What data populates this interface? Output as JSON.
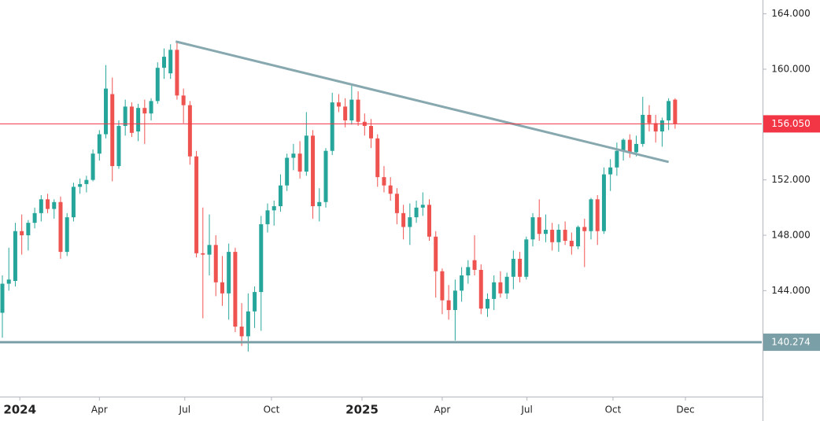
{
  "chart_data": {
    "type": "candlestick",
    "open": [
      142.4,
      144.5,
      144.7,
      148.3,
      148.0,
      148.9,
      149.6,
      150.6,
      149.9,
      150.4,
      146.8,
      149.3,
      151.5,
      151.7,
      152.0,
      153.9,
      155.3,
      158.2,
      153.0,
      155.9,
      157.3,
      155.5,
      157.2,
      156.8,
      157.7,
      160.1,
      159.7,
      161.4,
      158.1,
      157.4,
      153.7,
      146.7,
      146.6,
      147.3,
      144.6,
      143.8,
      146.8,
      141.4,
      140.7,
      142.5,
      143.9,
      148.8,
      149.8,
      150.1,
      151.6,
      153.6,
      153.9,
      152.6,
      155.2,
      150.1,
      150.4,
      154.1,
      157.6,
      157.3,
      156.3,
      157.8,
      156.2,
      155.9,
      155.0,
      152.2,
      151.6,
      151.0,
      149.6,
      148.6,
      149.3,
      150.0,
      150.2,
      147.9,
      145.4,
      143.3,
      142.6,
      144.0,
      145.1,
      146.2,
      145.5,
      142.7,
      143.4,
      144.6,
      143.8,
      145.0,
      146.3,
      145.0,
      147.7,
      149.3,
      148.1,
      148.4,
      147.5,
      148.4,
      147.6,
      147.2,
      148.6,
      148.3,
      150.6,
      148.3,
      152.4,
      152.9,
      154.1,
      154.9,
      154.0,
      154.6,
      156.7,
      156.1,
      155.5,
      156.3,
      157.8
    ],
    "high": [
      145.1,
      147.1,
      148.9,
      149.5,
      149.1,
      150.0,
      150.9,
      151.0,
      150.6,
      150.8,
      149.6,
      151.8,
      152.1,
      152.3,
      154.2,
      155.6,
      160.3,
      159.4,
      156.3,
      157.8,
      157.6,
      157.5,
      157.8,
      157.9,
      160.5,
      161.5,
      161.8,
      161.9,
      158.6,
      157.7,
      154.1,
      150.0,
      149.5,
      148.0,
      146.5,
      147.4,
      147.1,
      143.1,
      143.8,
      144.3,
      149.4,
      150.3,
      150.5,
      152.4,
      153.9,
      154.6,
      154.8,
      156.9,
      155.6,
      151.4,
      154.3,
      158.3,
      158.2,
      157.9,
      158.8,
      158.4,
      156.8,
      156.4,
      155.3,
      153.0,
      152.2,
      151.4,
      150.2,
      150.3,
      150.5,
      151.1,
      150.6,
      148.3,
      145.6,
      144.4,
      144.8,
      145.7,
      146.2,
      148.0,
      145.9,
      143.8,
      145.1,
      145.4,
      145.3,
      146.9,
      146.8,
      147.9,
      149.6,
      150.6,
      149.5,
      148.9,
      148.8,
      149.0,
      148.2,
      148.7,
      149.2,
      150.7,
      150.9,
      152.9,
      153.5,
      154.7,
      155.0,
      155.3,
      155.2,
      158.0,
      157.4,
      156.7,
      156.5,
      157.9,
      157.9
    ],
    "low": [
      140.6,
      144.0,
      144.3,
      146.6,
      146.9,
      148.5,
      149.0,
      149.6,
      149.2,
      146.3,
      146.5,
      149.0,
      151.0,
      151.1,
      151.9,
      153.4,
      155.0,
      151.9,
      152.8,
      155.2,
      155.1,
      154.8,
      154.6,
      156.3,
      157.5,
      159.3,
      159.3,
      157.8,
      156.1,
      153.1,
      146.4,
      142.0,
      145.1,
      143.6,
      142.9,
      141.9,
      141.0,
      140.0,
      139.6,
      141.3,
      141.1,
      148.2,
      148.7,
      149.7,
      151.2,
      152.7,
      152.1,
      152.3,
      149.2,
      149.0,
      150.0,
      153.8,
      156.9,
      155.8,
      156.0,
      155.9,
      155.2,
      154.3,
      151.5,
      151.1,
      150.5,
      148.8,
      147.7,
      147.3,
      148.9,
      149.4,
      147.6,
      143.5,
      142.3,
      141.9,
      140.4,
      143.2,
      144.5,
      145.1,
      142.3,
      142.1,
      142.6,
      143.5,
      143.4,
      144.1,
      144.6,
      144.8,
      147.2,
      147.6,
      147.5,
      146.9,
      146.8,
      147.3,
      146.6,
      147.0,
      145.7,
      147.7,
      147.3,
      148.1,
      151.2,
      152.3,
      153.4,
      153.6,
      153.7,
      154.4,
      155.5,
      154.7,
      154.4,
      155.6,
      155.7
    ],
    "close": [
      144.5,
      144.8,
      148.3,
      148.0,
      148.9,
      149.6,
      150.6,
      149.9,
      150.4,
      146.8,
      149.3,
      151.5,
      151.7,
      152.0,
      153.9,
      155.3,
      158.6,
      153.0,
      155.9,
      157.3,
      155.4,
      157.2,
      156.8,
      157.7,
      160.1,
      160.9,
      161.4,
      158.1,
      157.4,
      153.7,
      146.7,
      146.6,
      147.3,
      144.6,
      143.8,
      146.8,
      141.4,
      140.7,
      142.5,
      143.9,
      148.8,
      149.8,
      150.1,
      151.6,
      153.6,
      153.9,
      152.6,
      155.2,
      150.1,
      150.4,
      154.1,
      157.6,
      157.3,
      156.3,
      157.8,
      156.2,
      155.9,
      155.0,
      152.2,
      151.6,
      151.0,
      149.6,
      148.6,
      149.3,
      150.0,
      150.2,
      147.9,
      145.4,
      143.3,
      142.6,
      144.0,
      145.1,
      145.7,
      145.5,
      142.7,
      143.4,
      144.6,
      143.8,
      145.0,
      146.3,
      145.0,
      147.7,
      149.3,
      148.1,
      148.4,
      147.5,
      148.4,
      147.6,
      147.2,
      148.6,
      148.3,
      150.6,
      148.3,
      152.4,
      152.9,
      154.1,
      154.9,
      154.0,
      154.6,
      156.7,
      156.1,
      155.5,
      156.3,
      157.7,
      156.05
    ],
    "up_color": "#26a69a",
    "down_color": "#ef5350",
    "xlim": [
      -0.365,
      117.4
    ],
    "xticks": [
      {
        "value": 2.7,
        "label": "2024",
        "bold": true
      },
      {
        "value": 15.0,
        "label": "Apr"
      },
      {
        "value": 28.2,
        "label": "Jul"
      },
      {
        "value": 41.6,
        "label": "Oct"
      },
      {
        "value": 55.6,
        "label": "2025",
        "bold": true
      },
      {
        "value": 68.0,
        "label": "Apr"
      },
      {
        "value": 81.1,
        "label": "Jul"
      },
      {
        "value": 94.4,
        "label": "Oct"
      },
      {
        "value": 105.6,
        "label": "Dec"
      }
    ],
    "ylim": [
      136.4,
      165.0
    ],
    "yticks": [
      {
        "value": 144,
        "label": "144.000"
      },
      {
        "value": 148,
        "label": "148.000"
      },
      {
        "value": 152,
        "label": "152.000"
      },
      {
        "value": 160,
        "label": "160.000"
      },
      {
        "value": 164,
        "label": "164.000"
      }
    ],
    "price_lines": [
      {
        "value": 156.05,
        "label": "156.050",
        "color": "#f23645"
      },
      {
        "value": 140.274,
        "label": "140.274",
        "color": "#7a9fa6"
      }
    ],
    "trend_line": {
      "x": [
        26.8,
        103.0
      ],
      "y": [
        162.0,
        153.3
      ],
      "color": "#86a8ae"
    }
  }
}
